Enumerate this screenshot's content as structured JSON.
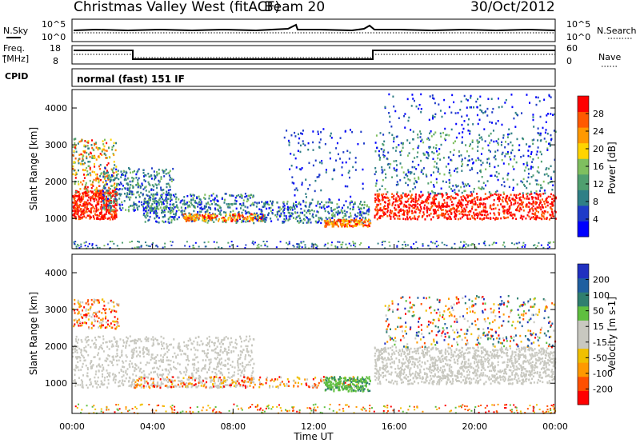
{
  "header": {
    "title": "Christmas Valley West (fitACF)",
    "beam": "Beam 20",
    "date": "30/Oct/2012"
  },
  "panels": {
    "nsky_label": "N.Sky",
    "nsky_ticks": [
      "10^5",
      "10^0"
    ],
    "nsearch_label": "N.Search",
    "nsearch_ticks": [
      "10^5",
      "10^0"
    ],
    "freq_label_line1": "Freq.",
    "freq_label_line2": "[MHz]",
    "freq_ticks": [
      "18",
      "8"
    ],
    "nave_label": "Nave",
    "nave_ticks": [
      "60",
      "0"
    ],
    "cpid_label": "CPID",
    "cpid_text": "normal (fast) 151 IF"
  },
  "colors": {
    "power": [
      "#0000ff",
      "#1f3cc8",
      "#2f7f86",
      "#4f9f6f",
      "#7fbf5f",
      "#ffd400",
      "#ff9900",
      "#ff5a00",
      "#ff0000"
    ],
    "velocity_pos": [
      "#2030c0",
      "#1f5fa0",
      "#2f7f6f",
      "#5fbf3f"
    ],
    "velocity_zero": "#c8c8c0",
    "velocity_neg": [
      "#f0c000",
      "#ff9900",
      "#ff5000",
      "#ff0000"
    ]
  },
  "chart_data": [
    {
      "type": "heatmap",
      "panel": "power",
      "ylabel": "Slant Range [km]",
      "yticks": [
        "1000",
        "2000",
        "3000",
        "4000"
      ],
      "xticks": [
        "00:00",
        "04:00",
        "08:00",
        "12:00",
        "16:00",
        "20:00",
        "00:00"
      ],
      "colorbar_label": "Power [dB]",
      "colorbar_ticks": [
        "4",
        "8",
        "12",
        "16",
        "20",
        "24",
        "28"
      ],
      "ylim": [
        180,
        4500
      ],
      "xlim": [
        0,
        24
      ]
    },
    {
      "type": "heatmap",
      "panel": "velocity",
      "ylabel": "Slant Range [km]",
      "yticks": [
        "1000",
        "2000",
        "3000",
        "4000"
      ],
      "xticks": [
        "00:00",
        "04:00",
        "08:00",
        "12:00",
        "16:00",
        "20:00",
        "00:00"
      ],
      "xlabel": "Time UT",
      "colorbar_label": "Velocity [m s-1]",
      "colorbar_ticks": [
        "200",
        "100",
        "50",
        "15",
        "-15",
        "-50",
        "-100",
        "-200"
      ],
      "ylim": [
        180,
        4500
      ],
      "xlim": [
        0,
        24
      ]
    }
  ]
}
